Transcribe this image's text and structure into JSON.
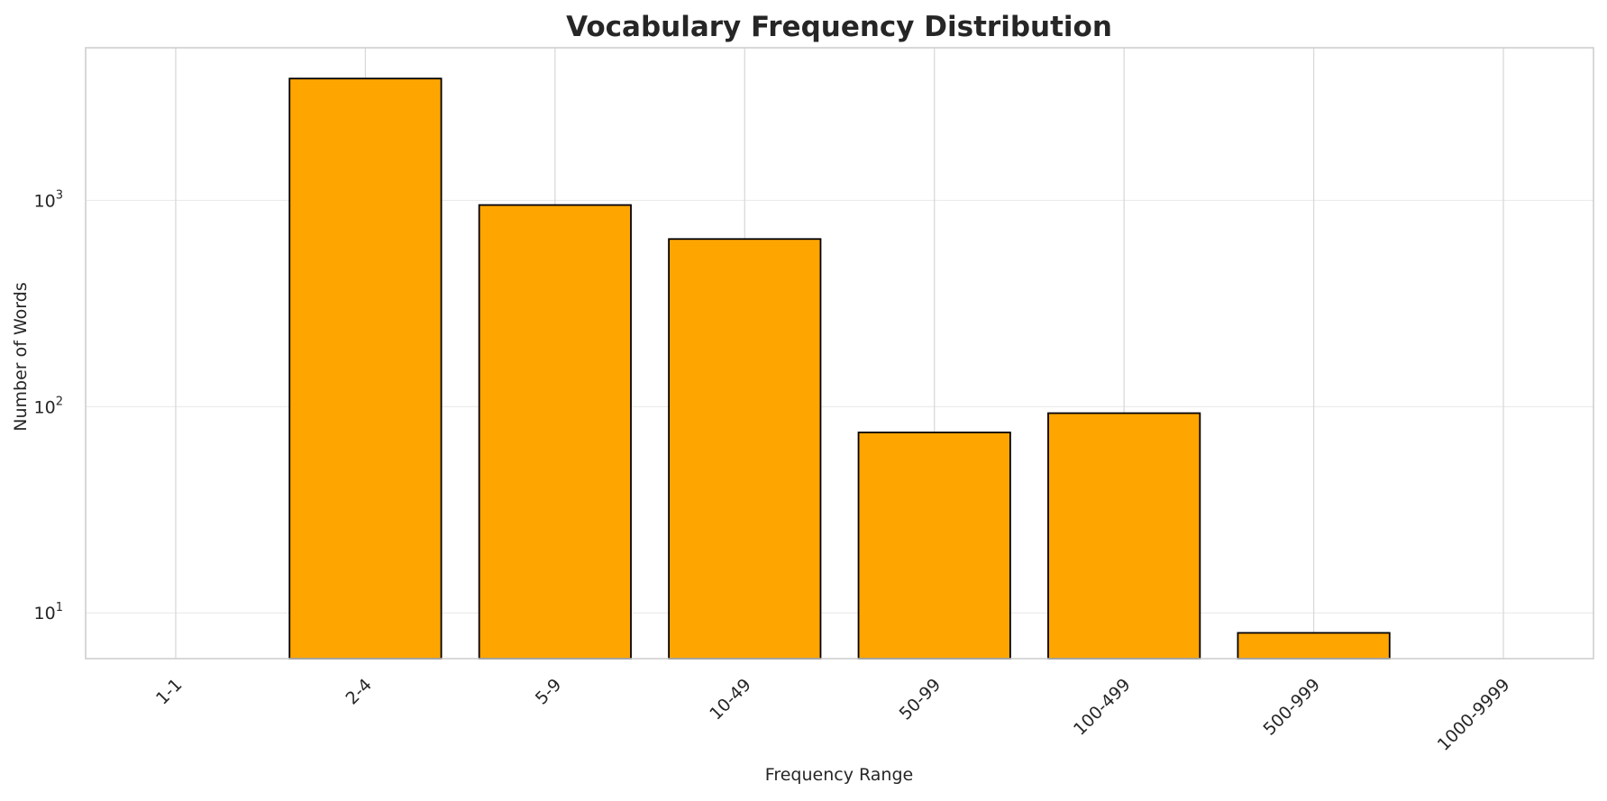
{
  "chart_data": {
    "type": "bar",
    "title": "Vocabulary Frequency Distribution",
    "xlabel": "Frequency Range",
    "ylabel": "Number of Words",
    "yscale": "log",
    "ylim": [
      6,
      5500
    ],
    "yticks": [
      {
        "value": 10,
        "base": "10",
        "exp": "1"
      },
      {
        "value": 100,
        "base": "10",
        "exp": "2"
      },
      {
        "value": 1000,
        "base": "10",
        "exp": "3"
      }
    ],
    "categories": [
      "1-1",
      "2-4",
      "5-9",
      "10-49",
      "50-99",
      "100-499",
      "500-999",
      "1000-9999"
    ],
    "values": [
      null,
      3900,
      950,
      650,
      75,
      93,
      8,
      null
    ],
    "grid": true,
    "bar_color": "#ffa500",
    "bar_edge_color": "#000000",
    "grid_color": "#d9d9d9",
    "text_color": "#262626"
  }
}
